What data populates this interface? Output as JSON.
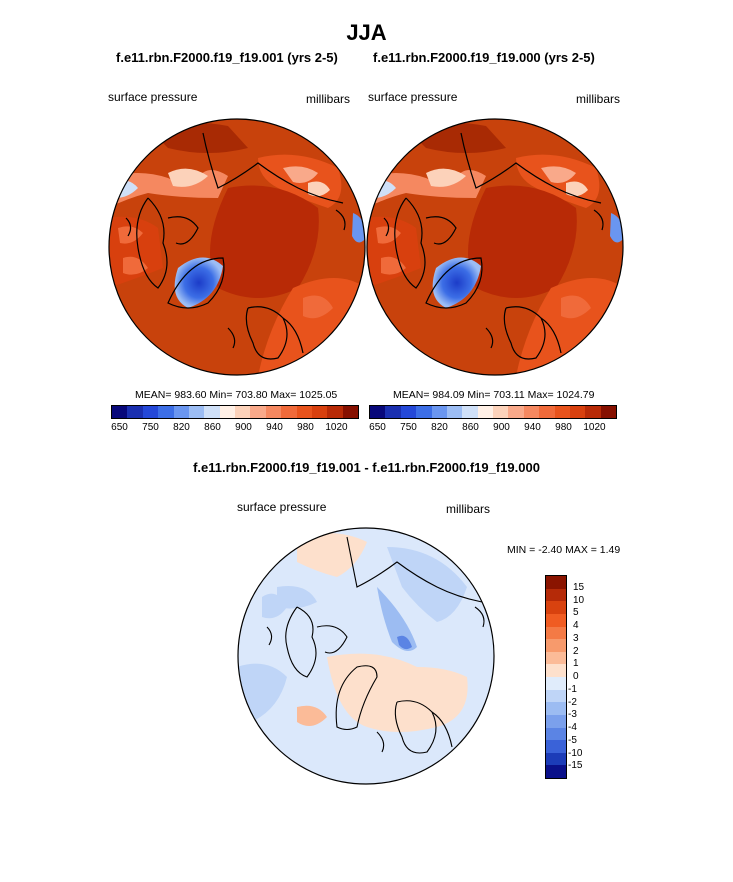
{
  "title": "JJA",
  "panels": [
    {
      "case": "f.e11.rbn.F2000.f19_f19.001 (yrs 2-5)",
      "left_label": "surface pressure",
      "right_label": "millibars",
      "stats": "MEAN= 983.60  Min= 703.80  Max= 1025.05"
    },
    {
      "case": "f.e11.rbn.F2000.f19_f19.000 (yrs 2-5)",
      "left_label": "surface pressure",
      "right_label": "millibars",
      "stats": "MEAN= 984.09  Min= 703.11  Max= 1024.79"
    }
  ],
  "colorbar_top": {
    "colors": [
      "#08087a",
      "#1a2fb0",
      "#2448d8",
      "#3c6ee6",
      "#6a96f0",
      "#9cbdf4",
      "#cfe0f8",
      "#fff0e6",
      "#fcd2ba",
      "#f9a98a",
      "#f58860",
      "#f06a3a",
      "#e8531c",
      "#d8400e",
      "#b82a06",
      "#861000"
    ],
    "labels": [
      "650",
      "750",
      "820",
      "860",
      "900",
      "940",
      "980",
      "1020"
    ]
  },
  "diff": {
    "title": "f.e11.rbn.F2000.f19_f19.001 - f.e11.rbn.F2000.f19_f19.000",
    "left_label": "surface pressure",
    "right_label": "millibars",
    "minmax": "MIN =  -2.40 MAX =   1.49"
  },
  "colorbar_diff": {
    "colors": [
      "#8a1400",
      "#b52a08",
      "#d8420f",
      "#f05c22",
      "#f47a45",
      "#f79a6c",
      "#fbbb98",
      "#fde0cc",
      "#e0ecfb",
      "#bfd5f7",
      "#9cbcf2",
      "#7ba0ec",
      "#5b84e4",
      "#3a62d8",
      "#1c3cb8",
      "#0a108a"
    ],
    "labels": [
      "15",
      "10",
      "5",
      "4",
      "3",
      "2",
      "1",
      "0",
      "-1",
      "-2",
      "-3",
      "-4",
      "-5",
      "-10",
      "-15"
    ]
  }
}
